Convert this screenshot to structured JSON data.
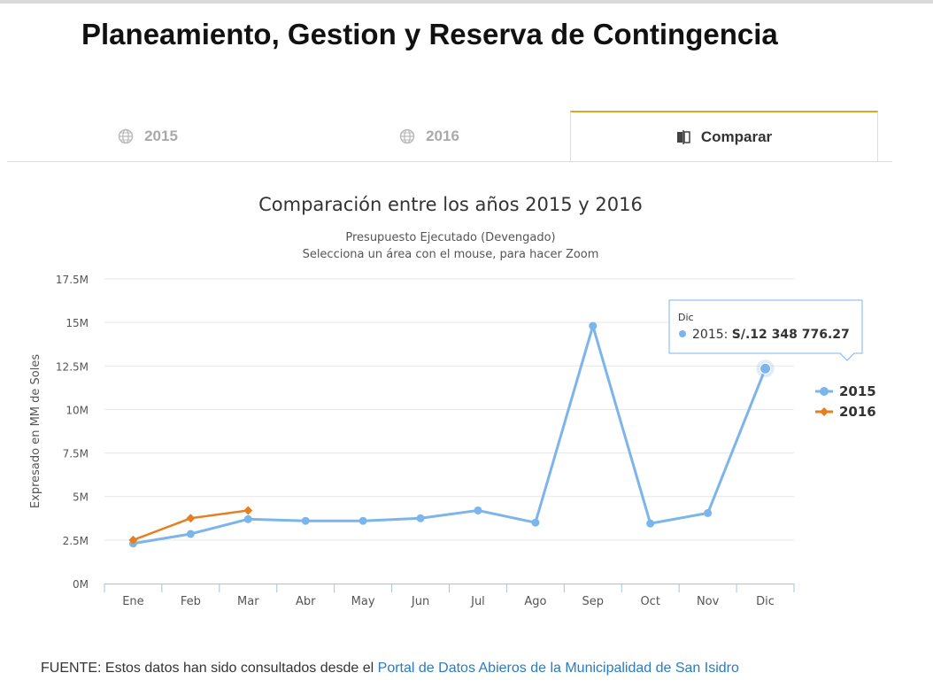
{
  "page": {
    "title": "Planeamiento, Gestion y Reserva de Contingencia"
  },
  "tabs": [
    {
      "label": "2015",
      "icon": "globe-icon",
      "active": false
    },
    {
      "label": "2016",
      "icon": "globe-icon",
      "active": false
    },
    {
      "label": "Comparar",
      "icon": "compare-icon",
      "active": true
    }
  ],
  "chart": {
    "tooltip": {
      "category": "Dic",
      "series": "2015",
      "value_text": "S/.12 348 776.27"
    }
  },
  "chart_data": {
    "type": "line",
    "title": "Comparación entre los años 2015 y 2016",
    "subtitle_lines": [
      "Presupuesto Ejecutado (Devengado)",
      "Selecciona un área con el mouse, para hacer Zoom"
    ],
    "xlabel": "",
    "ylabel": "Expresado en MM de Soles",
    "categories": [
      "Ene",
      "Feb",
      "Mar",
      "Abr",
      "May",
      "Jun",
      "Jul",
      "Ago",
      "Sep",
      "Oct",
      "Nov",
      "Dic"
    ],
    "ylim": [
      0,
      17500000
    ],
    "yticks": [
      0,
      2500000,
      5000000,
      7500000,
      10000000,
      12500000,
      15000000,
      17500000
    ],
    "ytick_labels": [
      "0M",
      "2.5M",
      "5M",
      "7.5M",
      "10M",
      "12.5M",
      "15M",
      "17.5M"
    ],
    "grid": true,
    "legend_position": "right",
    "series": [
      {
        "name": "2015",
        "color": "#7cb5ec",
        "marker": "circle",
        "values": [
          2300000,
          2850000,
          3700000,
          3600000,
          3600000,
          3750000,
          4200000,
          3500000,
          14800000,
          3450000,
          4050000,
          12348776.27
        ]
      },
      {
        "name": "2016",
        "color": "#e67e22",
        "marker": "diamond",
        "values": [
          2500000,
          3750000,
          4200000,
          null,
          null,
          null,
          null,
          null,
          null,
          null,
          null,
          null
        ]
      }
    ]
  },
  "footer": {
    "source_prefix": "FUENTE: Estos datos han sido consultados desde el ",
    "source_link": "Portal de Datos Abieros de la Municipalidad de San Isidro"
  }
}
